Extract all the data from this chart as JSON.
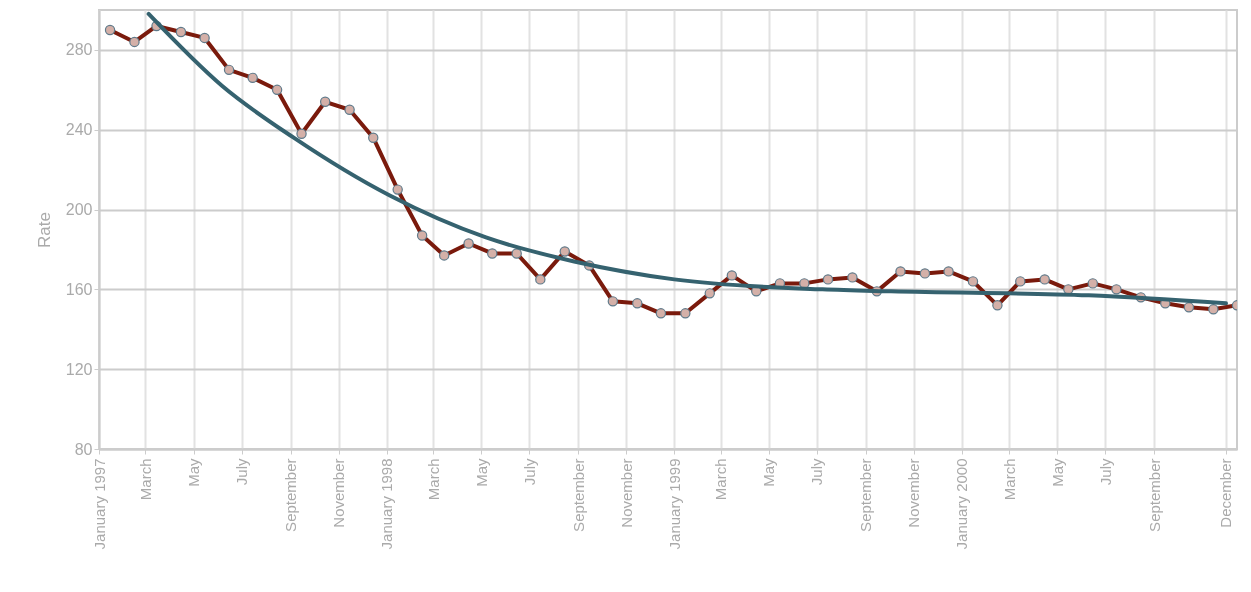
{
  "chart_data": {
    "type": "line",
    "ylabel": "Rate",
    "x": [
      "1997-01-15",
      "1997-02-15",
      "1997-03-15",
      "1997-04-15",
      "1997-05-15",
      "1997-06-15",
      "1997-07-15",
      "1997-08-15",
      "1997-09-15",
      "1997-10-15",
      "1997-11-15",
      "1997-12-15",
      "1998-01-15",
      "1998-02-15",
      "1998-03-15",
      "1998-04-15",
      "1998-05-15",
      "1998-06-15",
      "1998-07-15",
      "1998-08-15",
      "1998-09-15",
      "1998-10-15",
      "1998-11-15",
      "1998-12-15",
      "1999-01-15",
      "1999-02-15",
      "1999-03-15",
      "1999-04-15",
      "1999-05-15",
      "1999-06-15",
      "1999-07-15",
      "1999-08-15",
      "1999-09-15",
      "1999-10-15",
      "1999-11-15",
      "1999-12-15",
      "2000-01-15",
      "2000-02-15",
      "2000-03-15",
      "2000-04-15",
      "2000-05-15",
      "2000-06-15",
      "2000-07-15",
      "2000-08-15",
      "2000-09-15",
      "2000-10-15",
      "2000-11-15",
      "2000-12-15"
    ],
    "series": [
      {
        "color": "#7a1a0c",
        "marker": "circle",
        "values": [
          290,
          284,
          292,
          289,
          286,
          270,
          266,
          260,
          238,
          254,
          250,
          236,
          210,
          187,
          177,
          183,
          178,
          178,
          165,
          179,
          172,
          154,
          153,
          148,
          148,
          158,
          167,
          159,
          163,
          163,
          165,
          166,
          159,
          169,
          168,
          169,
          164,
          152,
          164,
          165,
          160,
          163,
          160,
          156,
          153,
          151,
          150,
          152
        ]
      },
      {
        "type": "line",
        "color": "#35626f",
        "marker": "none",
        "x": [
          "1997-03-05",
          "1997-06-06",
          "1997-09-05",
          "1998-01-05",
          "1998-05-07",
          "1998-08-27",
          "1999-01-01",
          "1999-07-08",
          "1999-10-03",
          "2000-06-10",
          "2000-12-01"
        ],
        "values": [
          298,
          262,
          236,
          207,
          186,
          174,
          165,
          160,
          159,
          157,
          153
        ]
      }
    ],
    "xlim": [
      "1997-01-01",
      "2000-12-15"
    ],
    "xticks": [
      {
        "value": "1997-01-01",
        "label": "January 1997"
      },
      {
        "value": "1997-03-01",
        "label": "March"
      },
      {
        "value": "1997-05-01",
        "label": "May"
      },
      {
        "value": "1997-07-01",
        "label": "July"
      },
      {
        "value": "1997-09-01",
        "label": "September"
      },
      {
        "value": "1997-11-01",
        "label": "November"
      },
      {
        "value": "1998-01-01",
        "label": "January 1998"
      },
      {
        "value": "1998-03-01",
        "label": "March"
      },
      {
        "value": "1998-05-01",
        "label": "May"
      },
      {
        "value": "1998-07-01",
        "label": "July"
      },
      {
        "value": "1998-09-01",
        "label": "September"
      },
      {
        "value": "1998-11-01",
        "label": "November"
      },
      {
        "value": "1999-01-01",
        "label": "January 1999"
      },
      {
        "value": "1999-03-01",
        "label": "March"
      },
      {
        "value": "1999-05-01",
        "label": "May"
      },
      {
        "value": "1999-07-01",
        "label": "July"
      },
      {
        "value": "1999-09-01",
        "label": "September"
      },
      {
        "value": "1999-11-01",
        "label": "November"
      },
      {
        "value": "2000-01-01",
        "label": "January 2000"
      },
      {
        "value": "2000-03-01",
        "label": "March"
      },
      {
        "value": "2000-05-01",
        "label": "May"
      },
      {
        "value": "2000-07-01",
        "label": "July"
      },
      {
        "value": "2000-09-01",
        "label": "September"
      },
      {
        "value": "2000-12-01",
        "label": "December"
      }
    ],
    "ylim": [
      80,
      300
    ],
    "yticks": [
      80,
      120,
      160,
      200,
      240,
      280
    ],
    "grid": true
  }
}
